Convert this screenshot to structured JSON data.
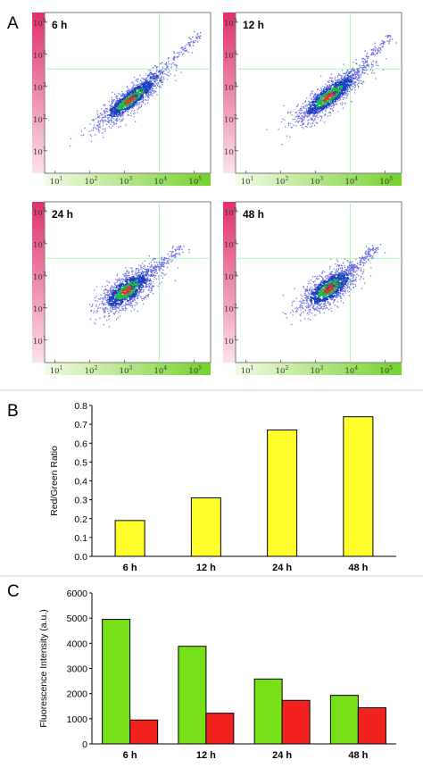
{
  "panels": {
    "a": "A",
    "b": "B",
    "c": "C"
  },
  "chart_data": [
    {
      "type": "scatter",
      "panel": "A",
      "x_scale": "log",
      "y_scale": "log",
      "xlim": [
        5,
        300000
      ],
      "ylim": [
        2,
        200000
      ],
      "x_ticks": [
        10,
        100,
        1000,
        10000,
        100000
      ],
      "y_ticks": [
        10,
        100,
        1000,
        10000,
        100000
      ],
      "x_tick_labels": [
        {
          "base": "10",
          "exp": "1"
        },
        {
          "base": "10",
          "exp": "2"
        },
        {
          "base": "10",
          "exp": "3"
        },
        {
          "base": "10",
          "exp": "4"
        },
        {
          "base": "10",
          "exp": "5"
        }
      ],
      "y_tick_labels": [
        {
          "base": "10",
          "exp": "1"
        },
        {
          "base": "10",
          "exp": "2"
        },
        {
          "base": "10",
          "exp": "3"
        },
        {
          "base": "10",
          "exp": "4"
        },
        {
          "base": "10",
          "exp": "5"
        }
      ],
      "gate": {
        "x": 10000,
        "y": 3500
      },
      "colors": {
        "sparse": "#6e6ee6",
        "dense": "#1a3fbf",
        "mid": "#22b34a",
        "core": "#e4322a",
        "gate": "#b8f0b8",
        "x_axis_bar": "#7fd436",
        "y_axis_bar": "#e5336f"
      },
      "plots": [
        {
          "label": "6 h",
          "center": [
            1500,
            400
          ],
          "spread_major": 1.1,
          "spread_minor": 0.28,
          "slope": 0.85,
          "tail_to": [
            150000,
            40000
          ]
        },
        {
          "label": "12 h",
          "center": [
            2500,
            500
          ],
          "spread_major": 1.1,
          "spread_minor": 0.32,
          "slope": 0.85,
          "tail_to": [
            150000,
            40000
          ]
        },
        {
          "label": "24 h",
          "center": [
            1200,
            350
          ],
          "spread_major": 0.9,
          "spread_minor": 0.38,
          "slope": 0.8,
          "tail_to": [
            50000,
            8000
          ]
        },
        {
          "label": "48 h",
          "center": [
            2500,
            400
          ],
          "spread_major": 0.9,
          "spread_minor": 0.38,
          "slope": 0.8,
          "tail_to": [
            60000,
            8000
          ]
        }
      ]
    },
    {
      "type": "bar",
      "panel": "B",
      "categories": [
        "6 h",
        "12 h",
        "24 h",
        "48 h"
      ],
      "values": [
        0.19,
        0.31,
        0.67,
        0.74
      ],
      "ylabel": "Red/Green Ratio",
      "ylim": [
        0,
        0.8
      ],
      "yticks": [
        "0.0",
        "0.1",
        "0.2",
        "0.3",
        "0.4",
        "0.5",
        "0.6",
        "0.7",
        "0.8"
      ],
      "bar_color": "#ffff2b",
      "grid": false
    },
    {
      "type": "bar",
      "panel": "C",
      "categories": [
        "6 h",
        "12 h",
        "24 h",
        "48 h"
      ],
      "series": [
        {
          "values": [
            4950,
            3880,
            2580,
            1930
          ],
          "color": "#77e019"
        },
        {
          "values": [
            950,
            1220,
            1730,
            1440
          ],
          "color": "#f2221e"
        }
      ],
      "ylabel": "Fluorescence Intensity (a.u.)",
      "ylim": [
        0,
        6000
      ],
      "yticks": [
        "0",
        "1000",
        "2000",
        "3000",
        "4000",
        "5000",
        "6000"
      ],
      "grid": false
    }
  ]
}
